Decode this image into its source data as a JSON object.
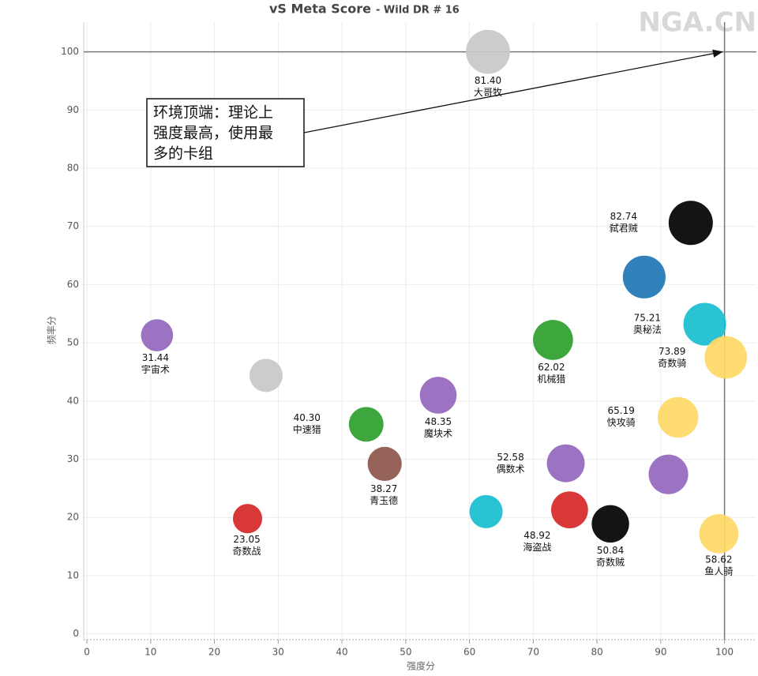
{
  "chart_data": {
    "type": "scatter",
    "title": "vS Meta Score",
    "subtitle": "- Wild DR # 16",
    "x_label": "强度分",
    "y_label": "频率分",
    "watermark": "NGA.CN",
    "xlim": [
      -0.5,
      105
    ],
    "ylim": [
      -1,
      105.1
    ],
    "xticks": [
      0,
      10,
      20,
      30,
      40,
      50,
      60,
      70,
      80,
      90,
      100
    ],
    "yticks": [
      0,
      10,
      20,
      30,
      40,
      50,
      60,
      70,
      80,
      90,
      100
    ],
    "grid": true,
    "reference_lines": {
      "x": 100,
      "y": 100
    },
    "annotation": {
      "lines": [
        "环境顶端：理论上",
        "强度最高，使用最",
        "多的卡组"
      ],
      "target": [
        100,
        100
      ]
    },
    "series": [
      {
        "x": [
          62.9,
          94.7,
          87.4,
          96.9,
          100.2,
          73.1,
          11.0,
          28.1,
          55.1,
          43.8,
          92.7,
          46.7,
          75.1,
          91.2,
          62.6,
          75.7,
          82.1,
          25.2,
          99.1
        ],
        "values": [
          100,
          70.6,
          61.3,
          53.2,
          47.5,
          50.5,
          51.3,
          44.4,
          41.0,
          36.0,
          37.2,
          29.2,
          29.3,
          27.4,
          21.0,
          21.3,
          18.9,
          19.8,
          17.2
        ],
        "sizes": [
          81.4,
          82.74,
          75.21,
          75,
          73.89,
          62.02,
          31.44,
          35,
          48.35,
          40.3,
          65.19,
          38.27,
          52.58,
          60,
          35,
          48.92,
          50.84,
          23.05,
          58.62
        ],
        "size_labels": [
          "81.40",
          "82.74",
          "75.21",
          null,
          "73.89",
          "62.02",
          "31.44",
          null,
          "48.35",
          "40.30",
          "65.19",
          "38.27",
          "52.58",
          null,
          null,
          "48.92",
          "50.84",
          "23.05",
          "58.62"
        ],
        "names": [
          "大哥牧",
          "弑君贼",
          "奥秘法",
          null,
          "奇数骑",
          "机械猎",
          "宇宙术",
          null,
          "魔块术",
          "中速猎",
          "快攻骑",
          "青玉德",
          "偶数术",
          null,
          null,
          "海盗战",
          "奇数贼",
          "奇数战",
          "鱼人骑"
        ],
        "colors": [
          "#c8c8c8",
          "#000000",
          "#1f77b4",
          "#17becf",
          "#ffd966",
          "#2ca02c",
          "#9467bd",
          "#c8c8c8",
          "#9467bd",
          "#2ca02c",
          "#ffd966",
          "#8c564b",
          "#9467bd",
          "#9467bd",
          "#17becf",
          "#d62728",
          "#000000",
          "#d62728",
          "#ffd966"
        ]
      }
    ]
  }
}
